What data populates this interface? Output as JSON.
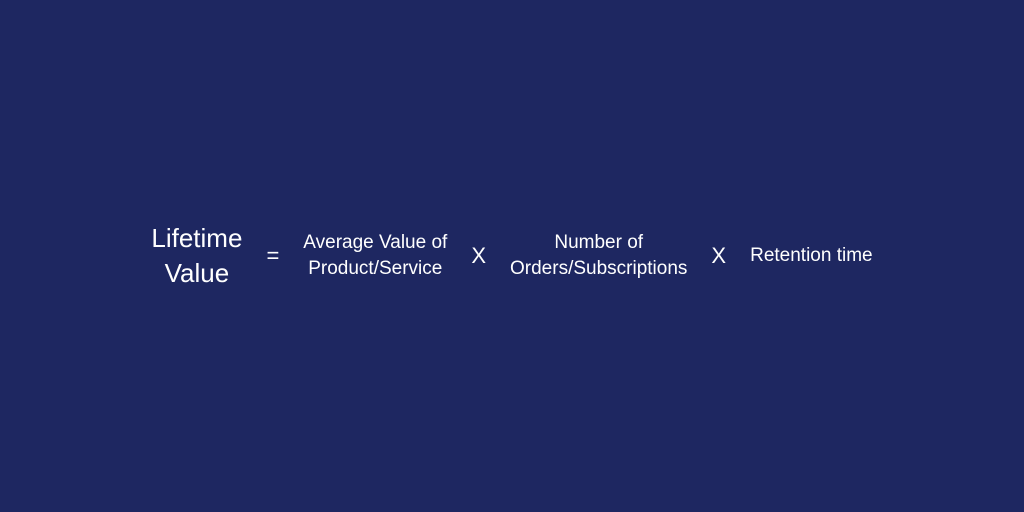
{
  "formula": {
    "type": "equation",
    "background_color": "#1e2761",
    "text_color": "#ffffff",
    "result": {
      "line1": "Lifetime",
      "line2": "Value",
      "fontsize": 26
    },
    "equals": "=",
    "multiply": "X",
    "operator_fontsize": 22,
    "factor_fontsize": 19,
    "factors": [
      {
        "line1": "Average Value of",
        "line2": "Product/Service"
      },
      {
        "line1": "Number of",
        "line2": "Orders/Subscriptions"
      },
      {
        "line1": "Retention time",
        "line2": ""
      }
    ]
  }
}
